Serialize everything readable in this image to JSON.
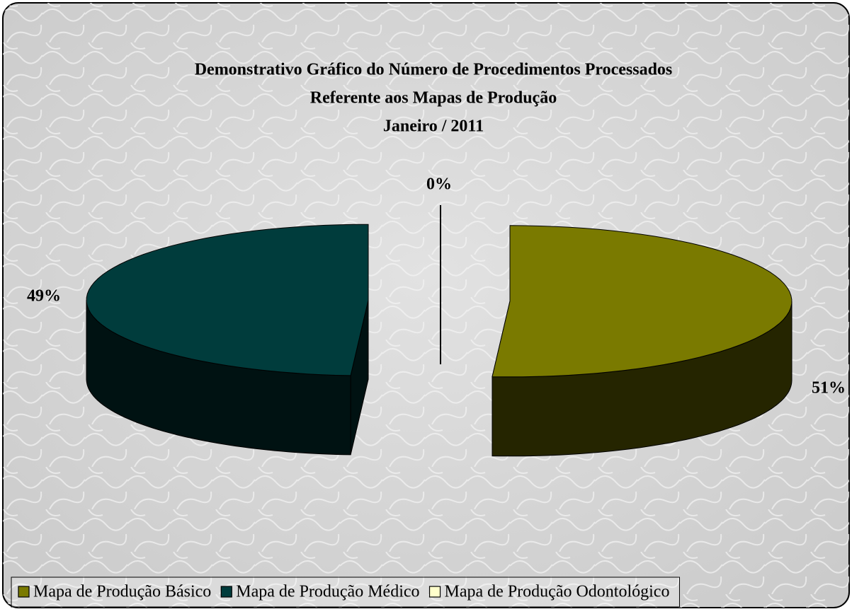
{
  "chart_data": {
    "type": "pie3d",
    "title": [
      "Demonstrativo Gráfico do Número de Procedimentos Processados",
      "Referente aos Mapas de Produção",
      "Janeiro / 2011"
    ],
    "categories": [
      "Mapa de Produção Básico",
      "Mapa de Produção Médico",
      "Mapa de Produção Odontológico"
    ],
    "values": [
      51,
      49,
      0
    ],
    "value_labels": [
      "51%",
      "49%",
      "0%"
    ],
    "colors": [
      "#7a7a00",
      "#003c3c",
      "#ffffcc"
    ],
    "legend": "bottom"
  }
}
